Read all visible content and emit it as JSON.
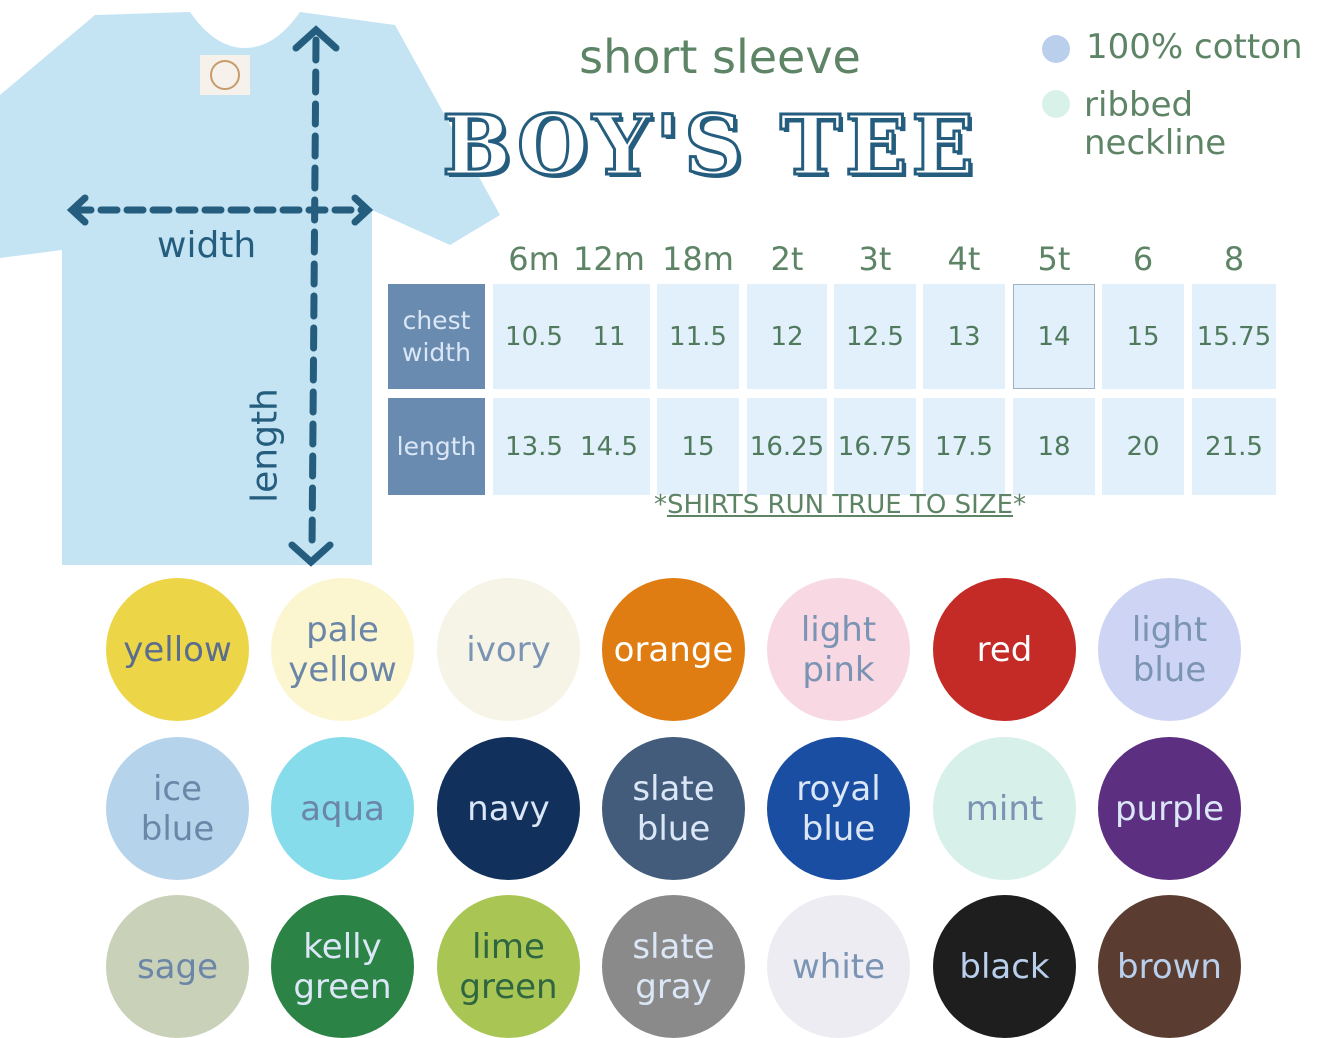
{
  "header": {
    "subtitle": "short sleeve",
    "title": "BOY'S TEE"
  },
  "features": [
    {
      "label": "100% cotton",
      "color": "#b9cfec"
    },
    {
      "label": "ribbed neckline",
      "color": "#d8f2ea"
    }
  ],
  "diagram": {
    "width_label": "width",
    "length_label": "length",
    "shirt_color": "#c4e3f3",
    "arrow_color": "#245d7e"
  },
  "size_chart": {
    "sizes": [
      "6m",
      "12m",
      "18m",
      "2t",
      "3t",
      "4t",
      "5t",
      "6",
      "8"
    ],
    "rows": [
      {
        "label": "chest width",
        "values": [
          "10.5",
          "11",
          "11.5",
          "12",
          "12.5",
          "13",
          "14",
          "15",
          "15.75"
        ]
      },
      {
        "label": "length",
        "values": [
          "13.5",
          "14.5",
          "15",
          "16.25",
          "16.75",
          "17.5",
          "18",
          "20",
          "21.5"
        ]
      }
    ],
    "note_prefix": "*",
    "note": "SHIRTS RUN TRUE TO SIZE",
    "note_suffix": "*"
  },
  "colors": [
    {
      "name": "yellow",
      "hex": "#ecd647",
      "text": "#5a6d8f"
    },
    {
      "name": "pale yellow",
      "hex": "#fbf6cf",
      "text": "#6c86a8"
    },
    {
      "name": "ivory",
      "hex": "#f6f4e6",
      "text": "#7b94b4"
    },
    {
      "name": "orange",
      "hex": "#e07d12",
      "text": "#ffffff"
    },
    {
      "name": "light pink",
      "hex": "#f8d8e2",
      "text": "#7b94b4"
    },
    {
      "name": "red",
      "hex": "#c42a26",
      "text": "#ffffff"
    },
    {
      "name": "light blue",
      "hex": "#ced5f4",
      "text": "#7b94b4"
    },
    {
      "name": "ice blue",
      "hex": "#b6d3ec",
      "text": "#6c86a8"
    },
    {
      "name": "aqua",
      "hex": "#86dceb",
      "text": "#6c86a8"
    },
    {
      "name": "navy",
      "hex": "#12305c",
      "text": "#dbe7f6"
    },
    {
      "name": "slate blue",
      "hex": "#435c7c",
      "text": "#dbe7f6"
    },
    {
      "name": "royal blue",
      "hex": "#1a4ea3",
      "text": "#dbe7f6"
    },
    {
      "name": "mint",
      "hex": "#d7f0ea",
      "text": "#7b94b4"
    },
    {
      "name": "purple",
      "hex": "#5c2f80",
      "text": "#dbe7f6"
    },
    {
      "name": "sage",
      "hex": "#c9d1b8",
      "text": "#6c86a8"
    },
    {
      "name": "kelly green",
      "hex": "#2b8346",
      "text": "#dbe7f6"
    },
    {
      "name": "lime green",
      "hex": "#a9c655",
      "text": "#2f6640"
    },
    {
      "name": "slate gray",
      "hex": "#8a8a8a",
      "text": "#dbe7f6"
    },
    {
      "name": "white",
      "hex": "#ececf2",
      "text": "#7b94b4"
    },
    {
      "name": "black",
      "hex": "#1e1e1e",
      "text": "#b9cfec"
    },
    {
      "name": "brown",
      "hex": "#5a3d30",
      "text": "#b9cfec"
    }
  ]
}
